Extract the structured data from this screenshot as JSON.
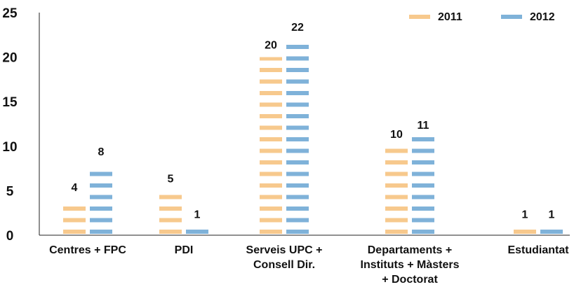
{
  "chart_data": {
    "type": "bar",
    "categories": [
      [
        "Centres + FPC"
      ],
      [
        "PDI"
      ],
      [
        "Serveis UPC +",
        "Consell Dir."
      ],
      [
        "Departaments +",
        "Instituts + Màsters",
        "+ Doctorat"
      ],
      [
        "Estudiantat"
      ]
    ],
    "series": [
      {
        "name": "2011",
        "color": "#f7c98d",
        "values": [
          4,
          5,
          20,
          10,
          1
        ]
      },
      {
        "name": "2012",
        "color": "#7fb2d9",
        "values": [
          8,
          1,
          22,
          11,
          1
        ]
      }
    ],
    "ylim": [
      0,
      25
    ],
    "yticks": [
      0,
      5,
      10,
      15,
      20,
      25
    ],
    "legend_position": "top-right",
    "grid": false
  }
}
